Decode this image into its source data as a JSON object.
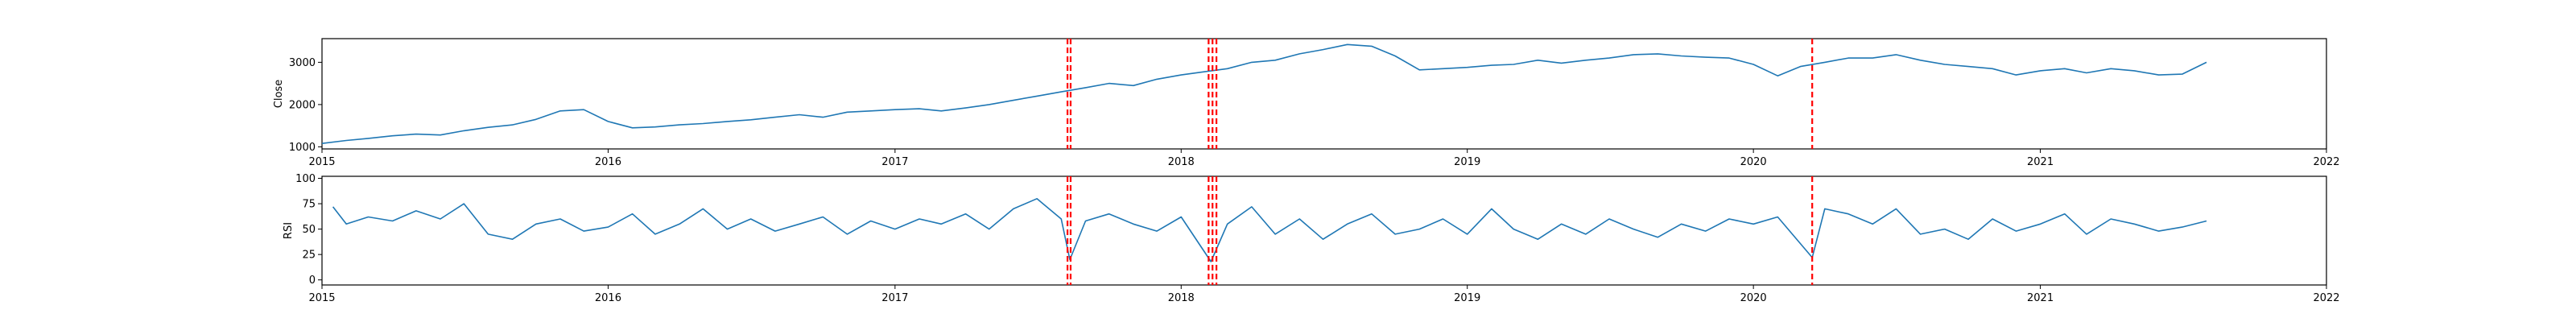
{
  "chart_data": [
    {
      "type": "line",
      "ylabel": "Close",
      "xlabel": "",
      "xlim": [
        "2015-01-01",
        "2022-01-01"
      ],
      "ylim": [
        950,
        3560
      ],
      "yticks": [
        1000,
        2000,
        3000
      ],
      "xticks": [
        "2015",
        "2016",
        "2017",
        "2018",
        "2019",
        "2020",
        "2021",
        "2022"
      ],
      "grid": false,
      "line_color": "#1f77b4",
      "series": [
        {
          "x": [
            "2015-01-01",
            "2015-02-01",
            "2015-03-01",
            "2015-04-01",
            "2015-05-01",
            "2015-06-01",
            "2015-07-01",
            "2015-08-01",
            "2015-09-01",
            "2015-10-01",
            "2015-11-01",
            "2015-12-01",
            "2016-01-01",
            "2016-02-01",
            "2016-03-01",
            "2016-04-01",
            "2016-05-01",
            "2016-06-01",
            "2016-07-01",
            "2016-08-01",
            "2016-09-01",
            "2016-10-01",
            "2016-11-01",
            "2016-12-01",
            "2017-01-01",
            "2017-02-01",
            "2017-03-01",
            "2017-04-01",
            "2017-05-01",
            "2017-06-01",
            "2017-07-01",
            "2017-08-01",
            "2017-09-01",
            "2017-10-01",
            "2017-11-01",
            "2017-12-01",
            "2018-01-01",
            "2018-02-01",
            "2018-03-01",
            "2018-04-01",
            "2018-05-01",
            "2018-06-01",
            "2018-07-01",
            "2018-08-01",
            "2018-09-01",
            "2018-10-01",
            "2018-11-01",
            "2018-12-01",
            "2019-01-01",
            "2019-02-01",
            "2019-03-01",
            "2019-04-01",
            "2019-05-01",
            "2019-06-01",
            "2019-07-01",
            "2019-08-01",
            "2019-09-01",
            "2019-10-01",
            "2019-11-01",
            "2019-12-01",
            "2020-01-01",
            "2020-02-01",
            "2020-03-01",
            "2020-04-01",
            "2020-05-01",
            "2020-06-01",
            "2020-07-01",
            "2020-08-01",
            "2020-09-01",
            "2020-10-01",
            "2020-11-01",
            "2020-12-01",
            "2021-01-01",
            "2021-02-01",
            "2021-03-01",
            "2021-04-01",
            "2021-05-01",
            "2021-06-01",
            "2021-07-01",
            "2021-08-01"
          ],
          "values": [
            1080,
            1150,
            1200,
            1260,
            1300,
            1280,
            1380,
            1460,
            1520,
            1650,
            1850,
            1880,
            1600,
            1450,
            1470,
            1520,
            1550,
            1600,
            1640,
            1700,
            1760,
            1700,
            1820,
            1850,
            1880,
            1900,
            1850,
            1920,
            2000,
            2100,
            2200,
            2300,
            2400,
            2500,
            2450,
            2600,
            2700,
            2780,
            2850,
            3000,
            3050,
            3200,
            3300,
            3420,
            3380,
            3150,
            2820,
            2850,
            2880,
            2930,
            2950,
            3050,
            2980,
            3050,
            3100,
            3180,
            3200,
            3150,
            3120,
            3100,
            2950,
            2680,
            2900,
            3000,
            3100,
            3100,
            3180,
            3050,
            2950,
            2900,
            2850,
            2700,
            2800,
            2850,
            2750,
            2850,
            2800,
            2700,
            2720,
            3000
          ]
        }
      ],
      "vlines": [
        "2017-08-09",
        "2017-08-13",
        "2018-02-05",
        "2018-02-10",
        "2018-02-15",
        "2020-03-16"
      ],
      "vline_color": "#ff0000"
    },
    {
      "type": "line",
      "ylabel": "RSI",
      "xlabel": "",
      "xlim": [
        "2015-01-01",
        "2022-01-01"
      ],
      "ylim": [
        -5,
        102
      ],
      "yticks": [
        0,
        25,
        50,
        75,
        100
      ],
      "xticks": [
        "2015",
        "2016",
        "2017",
        "2018",
        "2019",
        "2020",
        "2021",
        "2022"
      ],
      "grid": false,
      "line_color": "#1f77b4",
      "series": [
        {
          "x": [
            "2015-01-15",
            "2015-02-01",
            "2015-03-01",
            "2015-04-01",
            "2015-05-01",
            "2015-06-01",
            "2015-07-01",
            "2015-08-01",
            "2015-09-01",
            "2015-10-01",
            "2015-11-01",
            "2015-12-01",
            "2016-01-01",
            "2016-02-01",
            "2016-03-01",
            "2016-04-01",
            "2016-05-01",
            "2016-06-01",
            "2016-07-01",
            "2016-08-01",
            "2016-09-01",
            "2016-10-01",
            "2016-11-01",
            "2016-12-01",
            "2017-01-01",
            "2017-02-01",
            "2017-03-01",
            "2017-04-01",
            "2017-05-01",
            "2017-06-01",
            "2017-07-01",
            "2017-08-01",
            "2017-08-12",
            "2017-09-01",
            "2017-10-01",
            "2017-11-01",
            "2017-12-01",
            "2018-01-01",
            "2018-02-08",
            "2018-03-01",
            "2018-04-01",
            "2018-05-01",
            "2018-06-01",
            "2018-07-01",
            "2018-08-01",
            "2018-09-01",
            "2018-10-01",
            "2018-11-01",
            "2018-12-01",
            "2019-01-01",
            "2019-02-01",
            "2019-03-01",
            "2019-04-01",
            "2019-05-01",
            "2019-06-01",
            "2019-07-01",
            "2019-08-01",
            "2019-09-01",
            "2019-10-01",
            "2019-11-01",
            "2019-12-01",
            "2020-01-01",
            "2020-02-01",
            "2020-03-16",
            "2020-04-01",
            "2020-05-01",
            "2020-06-01",
            "2020-07-01",
            "2020-08-01",
            "2020-09-01",
            "2020-10-01",
            "2020-11-01",
            "2020-12-01",
            "2021-01-01",
            "2021-02-01",
            "2021-03-01",
            "2021-04-01",
            "2021-05-01",
            "2021-06-01",
            "2021-07-01",
            "2021-08-01"
          ],
          "values": [
            72,
            55,
            62,
            58,
            68,
            60,
            75,
            45,
            40,
            55,
            60,
            48,
            52,
            65,
            45,
            55,
            70,
            50,
            60,
            48,
            55,
            62,
            45,
            58,
            50,
            60,
            55,
            65,
            50,
            70,
            80,
            60,
            20,
            58,
            65,
            55,
            48,
            62,
            18,
            55,
            72,
            45,
            60,
            40,
            55,
            65,
            45,
            50,
            60,
            45,
            70,
            50,
            40,
            55,
            45,
            60,
            50,
            42,
            55,
            48,
            60,
            55,
            62,
            22,
            70,
            65,
            55,
            70,
            45,
            50,
            40,
            60,
            48,
            55,
            65,
            45,
            60,
            55,
            48,
            52,
            58
          ]
        }
      ],
      "vlines": [
        "2017-08-09",
        "2017-08-13",
        "2018-02-05",
        "2018-02-10",
        "2018-02-15",
        "2020-03-16"
      ],
      "vline_color": "#ff0000"
    }
  ]
}
